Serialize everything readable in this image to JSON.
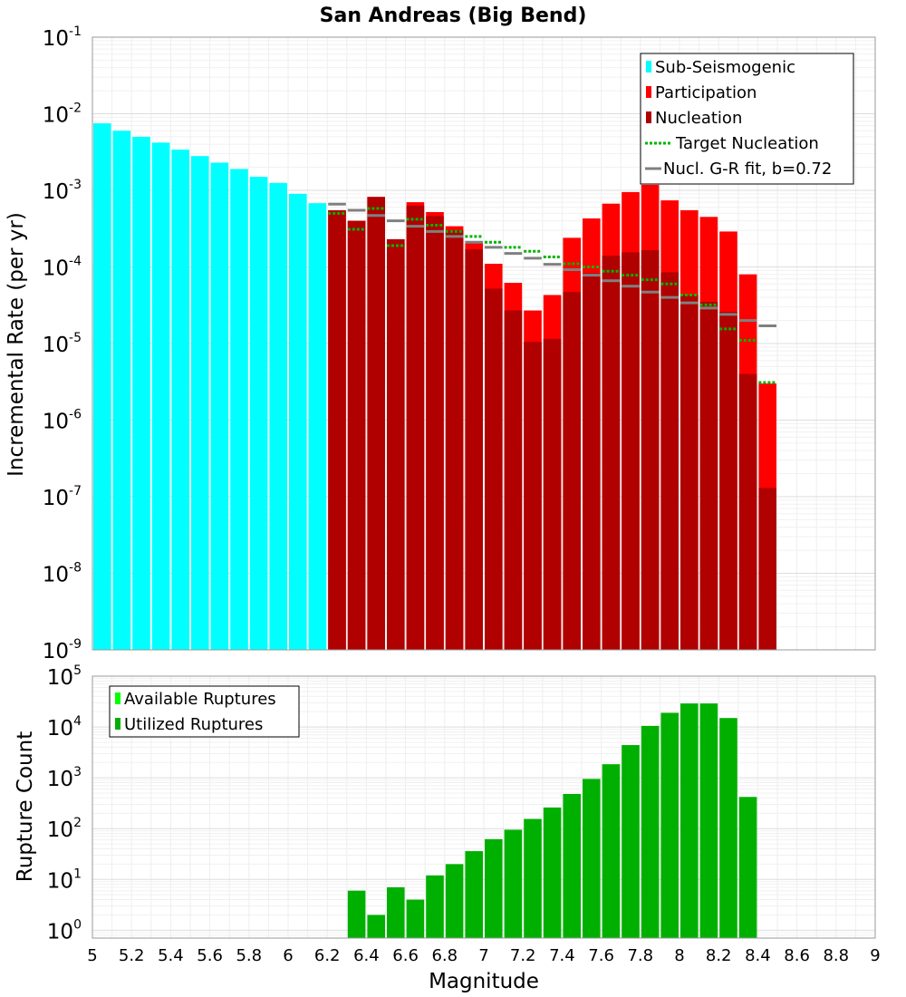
{
  "colors": {
    "sub_seismogenic": "#00ffff",
    "participation": "#ff0000",
    "nucleation": "#b00000",
    "target_nucleation": "#00b400",
    "gr_fit": "#808080",
    "available_ruptures": "#00ff00",
    "utilized_ruptures": "#00b000"
  },
  "chart_data": [
    {
      "type": "bar",
      "title": "San Andreas (Big Bend)",
      "xlabel": "",
      "ylabel": "Incremental Rate (per yr)",
      "yscale": "log",
      "xlim": [
        5,
        9
      ],
      "ylim": [
        1e-09,
        0.1
      ],
      "y_tick_labels": [
        {
          "base": "10",
          "exp": "-9"
        },
        {
          "base": "10",
          "exp": "-8"
        },
        {
          "base": "10",
          "exp": "-7"
        },
        {
          "base": "10",
          "exp": "-6"
        },
        {
          "base": "10",
          "exp": "-5"
        },
        {
          "base": "10",
          "exp": "-4"
        },
        {
          "base": "10",
          "exp": "-3"
        },
        {
          "base": "10",
          "exp": "-2"
        },
        {
          "base": "10",
          "exp": "-1"
        }
      ],
      "grid": true,
      "legend_position": "top-right",
      "legend": [
        "Sub-Seismogenic",
        "Participation",
        "Nucleation",
        "Target Nucleation",
        "Nucl. G-R fit, b=0.72"
      ],
      "bin_width": 0.1,
      "series": [
        {
          "name": "Sub-Seismogenic",
          "style": "bar",
          "x": [
            5.05,
            5.15,
            5.25,
            5.35,
            5.45,
            5.55,
            5.65,
            5.75,
            5.85,
            5.95,
            6.05,
            6.15
          ],
          "values": [
            0.0075,
            0.006,
            0.005,
            0.0042,
            0.0034,
            0.0028,
            0.0023,
            0.0019,
            0.0015,
            0.00125,
            0.0009,
            0.00068
          ]
        },
        {
          "name": "Participation",
          "style": "bar",
          "x": [
            6.25,
            6.35,
            6.45,
            6.55,
            6.65,
            6.75,
            6.85,
            6.95,
            7.05,
            7.15,
            7.25,
            7.35,
            7.45,
            7.55,
            7.65,
            7.75,
            7.85,
            7.95,
            8.05,
            8.15,
            8.25,
            8.35,
            8.45
          ],
          "values": [
            0.00055,
            0.0004,
            0.00082,
            0.00023,
            0.0007,
            0.00052,
            0.00034,
            0.00021,
            0.00011,
            6.2e-05,
            2.7e-05,
            4.3e-05,
            0.00024,
            0.00043,
            0.00067,
            0.00095,
            0.00118,
            0.00074,
            0.00055,
            0.00045,
            0.00029,
            8e-05,
            3e-06
          ]
        },
        {
          "name": "Nucleation",
          "style": "bar",
          "x": [
            6.25,
            6.35,
            6.45,
            6.55,
            6.65,
            6.75,
            6.85,
            6.95,
            7.05,
            7.15,
            7.25,
            7.35,
            7.45,
            7.55,
            7.65,
            7.75,
            7.85,
            7.95,
            8.05,
            8.15,
            8.25,
            8.35,
            8.45
          ],
          "values": [
            0.00055,
            0.0004,
            0.00082,
            0.00023,
            0.00063,
            0.00046,
            0.0003,
            0.00017,
            5.2e-05,
            2.7e-05,
            1.05e-05,
            1.15e-05,
            4.7e-05,
            8.3e-05,
            0.00014,
            0.000155,
            0.000165,
            8.5e-05,
            4.3e-05,
            3.5e-05,
            2.6e-05,
            4e-06,
            1.3e-07
          ]
        },
        {
          "name": "Target Nucleation",
          "style": "dashed-step",
          "x": [
            6.25,
            6.35,
            6.45,
            6.55,
            6.65,
            6.75,
            6.85,
            6.95,
            7.05,
            7.15,
            7.25,
            7.35,
            7.45,
            7.55,
            7.65,
            7.75,
            7.85,
            7.95,
            8.05,
            8.15,
            8.25,
            8.35,
            8.45
          ],
          "values": [
            0.0005,
            0.00031,
            0.00058,
            0.00019,
            0.00042,
            0.00035,
            0.00029,
            0.00025,
            0.00021,
            0.00018,
            0.00016,
            0.000135,
            0.00011,
            0.0001,
            8.8e-05,
            7.8e-05,
            6.8e-05,
            6e-05,
            4.3e-05,
            3.2e-05,
            1.55e-05,
            1.1e-05,
            3.1e-06
          ]
        },
        {
          "name": "Nucl. G-R fit, b=0.72",
          "style": "solid-step",
          "x": [
            6.25,
            6.35,
            6.45,
            6.55,
            6.65,
            6.75,
            6.85,
            6.95,
            7.05,
            7.15,
            7.25,
            7.35,
            7.45,
            7.55,
            7.65,
            7.75,
            7.85,
            7.95,
            8.05,
            8.15,
            8.25,
            8.35,
            8.45
          ],
          "values": [
            0.00066,
            0.00055,
            0.00047,
            0.0004,
            0.00034,
            0.00029,
            0.00025,
            0.00021,
            0.00018,
            0.00015,
            0.00013,
            0.000108,
            9.2e-05,
            7.8e-05,
            6.6e-05,
            5.6e-05,
            4.7e-05,
            4e-05,
            3.4e-05,
            2.9e-05,
            2.4e-05,
            2e-05,
            1.7e-05
          ]
        }
      ]
    },
    {
      "type": "bar",
      "title": "",
      "xlabel": "Magnitude",
      "ylabel": "Rupture Count",
      "yscale": "log",
      "xlim": [
        5,
        9
      ],
      "ylim": [
        0.7,
        100000
      ],
      "x_tick_labels": [
        "5",
        "5.2",
        "5.4",
        "5.6",
        "5.8",
        "6",
        "6.2",
        "6.4",
        "6.6",
        "6.8",
        "7",
        "7.2",
        "7.4",
        "7.6",
        "7.8",
        "8",
        "8.2",
        "8.4",
        "8.6",
        "8.8",
        "9"
      ],
      "y_tick_labels": [
        {
          "base": "10",
          "exp": "0"
        },
        {
          "base": "10",
          "exp": "1"
        },
        {
          "base": "10",
          "exp": "2"
        },
        {
          "base": "10",
          "exp": "3"
        },
        {
          "base": "10",
          "exp": "4"
        },
        {
          "base": "10",
          "exp": "5"
        }
      ],
      "grid": true,
      "legend_position": "top-left",
      "legend": [
        "Available Ruptures",
        "Utilized Ruptures"
      ],
      "bin_width": 0.1,
      "series": [
        {
          "name": "Utilized Ruptures",
          "style": "bar",
          "x": [
            6.35,
            6.45,
            6.55,
            6.65,
            6.75,
            6.85,
            6.95,
            7.05,
            7.15,
            7.25,
            7.35,
            7.45,
            7.55,
            7.65,
            7.75,
            7.85,
            7.95,
            8.05,
            8.15,
            8.25,
            8.35
          ],
          "values": [
            6,
            2,
            7,
            4,
            12,
            20,
            36,
            62,
            95,
            155,
            260,
            480,
            950,
            1850,
            4400,
            10500,
            19000,
            29000,
            29000,
            15000,
            420
          ]
        }
      ]
    }
  ]
}
